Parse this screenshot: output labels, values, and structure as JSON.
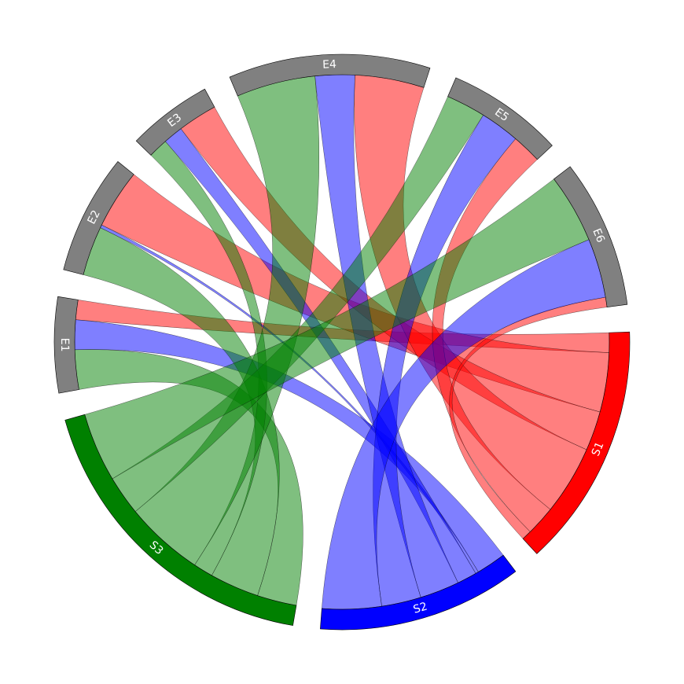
{
  "chart_data": {
    "type": "chord",
    "title": "",
    "nodes": [
      {
        "name": "S1",
        "color": "#ff0000",
        "kind": "source"
      },
      {
        "name": "S2",
        "color": "#0000ff",
        "kind": "source"
      },
      {
        "name": "S3",
        "color": "#008000",
        "kind": "source"
      },
      {
        "name": "E1",
        "color": "#808080",
        "kind": "target"
      },
      {
        "name": "E2",
        "color": "#808080",
        "kind": "target"
      },
      {
        "name": "E3",
        "color": "#808080",
        "kind": "target"
      },
      {
        "name": "E4",
        "color": "#808080",
        "kind": "target"
      },
      {
        "name": "E5",
        "color": "#808080",
        "kind": "target"
      },
      {
        "name": "E6",
        "color": "#808080",
        "kind": "target"
      }
    ],
    "links": [
      {
        "source": "S1",
        "target": "E1",
        "value": 2
      },
      {
        "source": "S1",
        "target": "E2",
        "value": 6
      },
      {
        "source": "S1",
        "target": "E3",
        "value": 4
      },
      {
        "source": "S1",
        "target": "E4",
        "value": 7
      },
      {
        "source": "S1",
        "target": "E5",
        "value": 3
      },
      {
        "source": "S1",
        "target": "E6",
        "value": 1
      },
      {
        "source": "S2",
        "target": "E1",
        "value": 3
      },
      {
        "source": "S2",
        "target": "E2",
        "value": 0.3
      },
      {
        "source": "S2",
        "target": "E3",
        "value": 2
      },
      {
        "source": "S2",
        "target": "E4",
        "value": 4
      },
      {
        "source": "S2",
        "target": "E5",
        "value": 4
      },
      {
        "source": "S2",
        "target": "E6",
        "value": 6
      },
      {
        "source": "S3",
        "target": "E1",
        "value": 4
      },
      {
        "source": "S3",
        "target": "E2",
        "value": 5
      },
      {
        "source": "S3",
        "target": "E3",
        "value": 2
      },
      {
        "source": "S3",
        "target": "E4",
        "value": 8
      },
      {
        "source": "S3",
        "target": "E5",
        "value": 4
      },
      {
        "source": "S3",
        "target": "E6",
        "value": 7
      }
    ],
    "ribbon_opacity": 0.5,
    "legend": "none"
  }
}
